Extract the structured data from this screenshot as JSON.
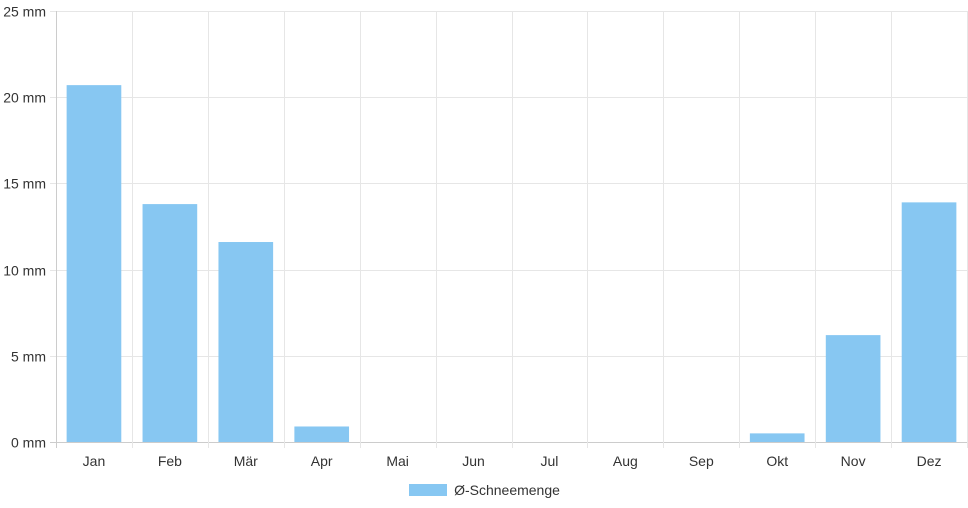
{
  "chart_data": {
    "type": "bar",
    "categories": [
      "Jan",
      "Feb",
      "Mär",
      "Apr",
      "Mai",
      "Jun",
      "Jul",
      "Aug",
      "Sep",
      "Okt",
      "Nov",
      "Dez"
    ],
    "series": [
      {
        "name": "Ø-Schneemenge",
        "values": [
          20.7,
          13.8,
          11.6,
          0.9,
          0,
          0,
          0,
          0,
          0,
          0.5,
          6.2,
          13.9
        ]
      }
    ],
    "ylim": [
      0,
      25
    ],
    "yticks": [
      0,
      5,
      10,
      15,
      20,
      25
    ],
    "y_unit": "mm",
    "ytick_labels": [
      "0 mm",
      "5 mm",
      "10 mm",
      "15 mm",
      "20 mm",
      "25 mm"
    ],
    "grid": true,
    "legend_position": "bottom-center",
    "colors": {
      "bar": "#87c7f2",
      "grid": "#e6e6e6",
      "axis": "#cccccc"
    }
  },
  "legend": {
    "label": "Ø-Schneemenge"
  }
}
